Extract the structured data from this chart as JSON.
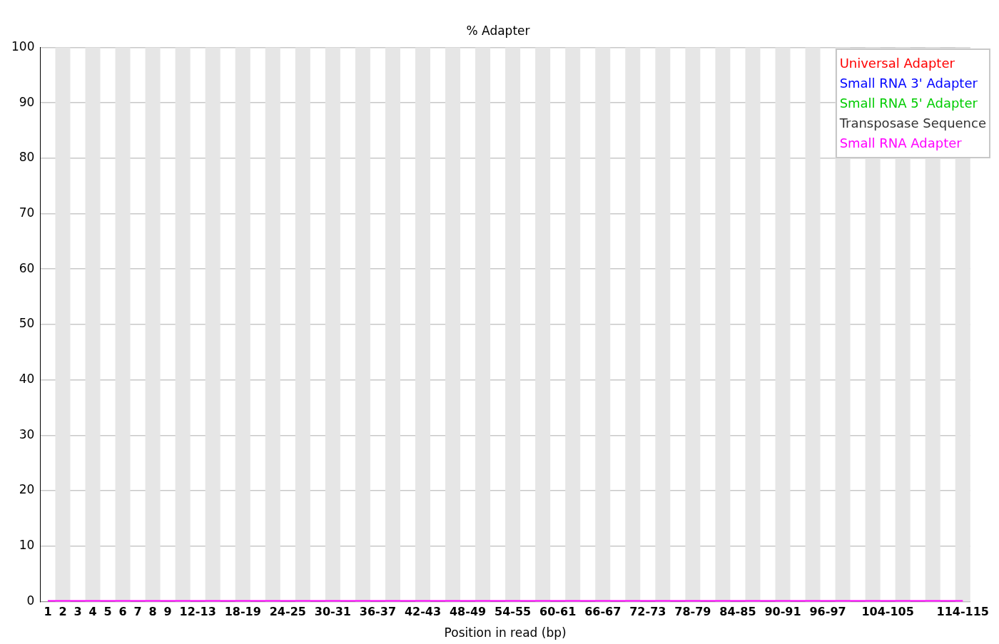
{
  "chart_data": {
    "type": "line",
    "title": "% Adapter",
    "xlabel": "Position in read (bp)",
    "categories": [
      "1",
      "2",
      "3",
      "4",
      "5",
      "6",
      "7",
      "8",
      "9",
      null,
      "12-13",
      null,
      null,
      "18-19",
      null,
      null,
      "24-25",
      null,
      null,
      "30-31",
      null,
      null,
      "36-37",
      null,
      null,
      "42-43",
      null,
      null,
      "48-49",
      null,
      null,
      "54-55",
      null,
      null,
      "60-61",
      null,
      null,
      "66-67",
      null,
      null,
      "72-73",
      null,
      null,
      "78-79",
      null,
      null,
      "84-85",
      null,
      null,
      "90-91",
      null,
      null,
      "96-97",
      null,
      null,
      null,
      "104-105",
      null,
      null,
      null,
      null,
      "114-115"
    ],
    "series": [
      {
        "name": "Universal Adapter",
        "color": "#ff0000",
        "values": [
          null,
          null,
          null,
          null,
          null,
          null,
          null,
          null,
          null,
          null,
          null,
          null,
          null,
          null,
          null,
          null,
          null,
          null,
          null,
          null,
          null,
          null,
          null,
          null,
          null,
          null,
          null,
          null,
          null,
          null,
          null,
          null,
          null,
          null,
          null,
          null,
          null,
          null,
          null,
          null,
          null,
          null,
          null,
          null,
          null,
          null,
          null,
          null,
          null,
          null,
          null,
          null,
          null,
          null,
          null,
          null,
          null,
          null,
          null,
          null,
          null,
          null
        ]
      },
      {
        "name": "Small RNA 3' Adapter",
        "color": "#0000ff",
        "values": [
          null,
          null,
          null,
          null,
          null,
          null,
          null,
          null,
          null,
          null,
          null,
          null,
          null,
          null,
          null,
          null,
          null,
          null,
          null,
          null,
          null,
          null,
          null,
          null,
          null,
          null,
          null,
          null,
          null,
          null,
          null,
          null,
          null,
          null,
          null,
          null,
          null,
          null,
          null,
          null,
          null,
          null,
          null,
          null,
          null,
          null,
          null,
          null,
          null,
          null,
          null,
          null,
          null,
          null,
          null,
          null,
          null,
          null,
          null,
          null,
          null,
          null
        ]
      },
      {
        "name": "Small RNA 5' Adapter",
        "color": "#00cc00",
        "values": [
          null,
          null,
          null,
          null,
          null,
          null,
          null,
          null,
          null,
          null,
          null,
          null,
          null,
          null,
          null,
          null,
          null,
          null,
          null,
          null,
          null,
          null,
          null,
          null,
          null,
          null,
          null,
          null,
          null,
          null,
          null,
          null,
          null,
          null,
          null,
          null,
          null,
          null,
          null,
          null,
          null,
          null,
          null,
          null,
          null,
          null,
          null,
          null,
          null,
          null,
          null,
          null,
          null,
          null,
          null,
          null,
          null,
          null,
          null,
          null,
          null,
          null
        ]
      },
      {
        "name": "Transposase Sequence",
        "color": "#333333",
        "values": [
          null,
          null,
          null,
          null,
          null,
          null,
          null,
          null,
          null,
          null,
          null,
          null,
          null,
          null,
          null,
          null,
          null,
          null,
          null,
          null,
          null,
          null,
          null,
          null,
          null,
          null,
          null,
          null,
          null,
          null,
          null,
          null,
          null,
          null,
          null,
          null,
          null,
          null,
          null,
          null,
          null,
          null,
          null,
          null,
          null,
          null,
          null,
          null,
          null,
          null,
          null,
          null,
          null,
          null,
          null,
          null,
          null,
          null,
          null,
          null,
          null,
          null
        ]
      },
      {
        "name": "Small RNA Adapter",
        "color": "#ff00ff",
        "values": [
          0,
          0,
          0,
          0,
          0,
          0,
          0,
          0,
          0,
          0,
          0,
          0,
          0,
          0,
          0,
          0,
          0,
          0,
          0,
          0,
          0,
          0,
          0,
          0,
          0,
          0,
          0,
          0,
          0,
          0,
          0,
          0,
          0,
          0,
          0,
          0,
          0,
          0,
          0,
          0,
          0,
          0,
          0,
          0,
          0,
          0,
          0,
          0,
          0,
          0,
          0,
          0,
          0,
          0,
          0,
          0,
          0,
          0,
          0,
          0,
          0,
          0
        ]
      }
    ],
    "ylim": [
      0,
      100
    ],
    "yticks": [
      0,
      10,
      20,
      30,
      40,
      50,
      60,
      70,
      80,
      90,
      100
    ],
    "grid": "y",
    "legend": "top right",
    "marker": "none",
    "line_style": "solid"
  }
}
